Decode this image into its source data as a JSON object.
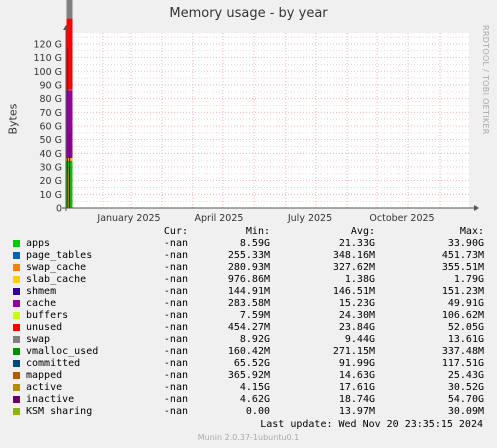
{
  "title": "Memory usage - by year",
  "side_label": "RRDTOOL / TOBI OETIKER",
  "chart_data": {
    "type": "area",
    "title": "Memory usage - by year",
    "ylabel": "Bytes",
    "yticks": [
      "0",
      "10 G",
      "20 G",
      "30 G",
      "40 G",
      "50 G",
      "60 G",
      "70 G",
      "80 G",
      "90 G",
      "100 G",
      "110 G",
      "120 G"
    ],
    "ylim": [
      0,
      128
    ],
    "y_unit": "G",
    "xticks": [
      "January 2025",
      "April 2025",
      "July 2025",
      "October 2025"
    ],
    "grid": true
  },
  "legend": {
    "headers": {
      "cur": "Cur:",
      "min": "Min:",
      "avg": "Avg:",
      "max": "Max:"
    },
    "rows": [
      {
        "name": "apps",
        "color": "#00cc00",
        "cur": "-nan",
        "min": "8.59G",
        "avg": "21.33G",
        "max": "33.90G"
      },
      {
        "name": "page_tables",
        "color": "#0066b3",
        "cur": "-nan",
        "min": "255.33M",
        "avg": "348.16M",
        "max": "451.73M"
      },
      {
        "name": "swap_cache",
        "color": "#ff8000",
        "cur": "-nan",
        "min": "280.93M",
        "avg": "327.62M",
        "max": "355.51M"
      },
      {
        "name": "slab_cache",
        "color": "#ffcc00",
        "cur": "-nan",
        "min": "976.86M",
        "avg": "1.38G",
        "max": "1.79G"
      },
      {
        "name": "shmem",
        "color": "#330099",
        "cur": "-nan",
        "min": "144.91M",
        "avg": "146.51M",
        "max": "151.23M"
      },
      {
        "name": "cache",
        "color": "#990099",
        "cur": "-nan",
        "min": "283.58M",
        "avg": "15.23G",
        "max": "49.91G"
      },
      {
        "name": "buffers",
        "color": "#ccff00",
        "cur": "-nan",
        "min": "7.59M",
        "avg": "24.30M",
        "max": "106.62M"
      },
      {
        "name": "unused",
        "color": "#ff0000",
        "cur": "-nan",
        "min": "454.27M",
        "avg": "23.84G",
        "max": "52.05G"
      },
      {
        "name": "swap",
        "color": "#808080",
        "cur": "-nan",
        "min": "8.92G",
        "avg": "9.44G",
        "max": "13.61G"
      },
      {
        "name": "vmalloc_used",
        "color": "#008f00",
        "cur": "-nan",
        "min": "160.42M",
        "avg": "271.15M",
        "max": "337.48M"
      },
      {
        "name": "committed",
        "color": "#00487d",
        "cur": "-nan",
        "min": "65.52G",
        "avg": "91.99G",
        "max": "117.51G"
      },
      {
        "name": "mapped",
        "color": "#b35a00",
        "cur": "-nan",
        "min": "365.92M",
        "avg": "14.63G",
        "max": "25.43G"
      },
      {
        "name": "active",
        "color": "#b38f00",
        "cur": "-nan",
        "min": "4.15G",
        "avg": "17.61G",
        "max": "30.52G"
      },
      {
        "name": "inactive",
        "color": "#6b006b",
        "cur": "-nan",
        "min": "4.62G",
        "avg": "18.74G",
        "max": "54.70G"
      },
      {
        "name": "KSM sharing",
        "color": "#8fb300",
        "cur": "-nan",
        "min": "0.00",
        "avg": "13.97M",
        "max": "30.09M"
      }
    ]
  },
  "last_update": "Last update: Wed Nov 20 23:35:15 2024",
  "footer": "Munin 2.0.37-1ubuntu0.1"
}
